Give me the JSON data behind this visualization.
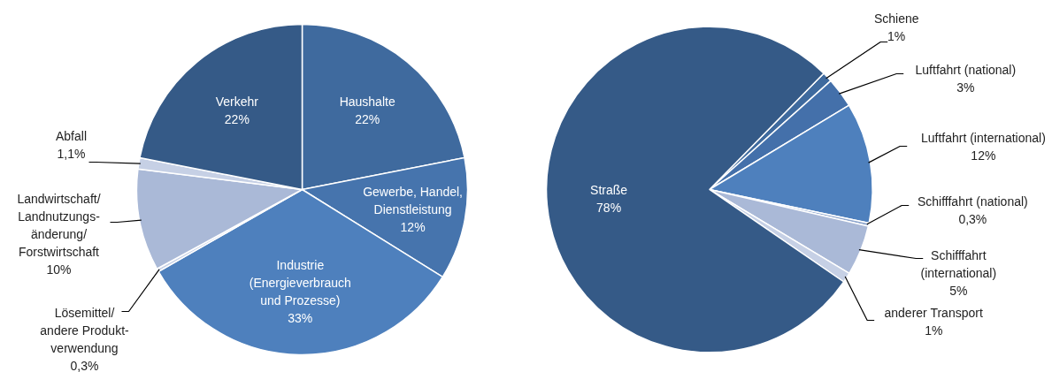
{
  "chart_data": [
    {
      "type": "pie",
      "categories": [
        "Haushalte",
        "Gewerbe, Handel,\nDienstleistung",
        "Industrie\n(Energieverbrauch\nund Prozesse)",
        "Lösemittel/\nandere Produkt-\nverwendung",
        "Landwirtschaft/\nLandnutzungs-\nänderung/\nForstwirtschaft",
        "Abfall",
        "Verkehr"
      ],
      "values": [
        22,
        12,
        33,
        0.3,
        10,
        1.1,
        22
      ],
      "value_labels": [
        "22%",
        "12%",
        "33%",
        "0,3%",
        "10%",
        "1,1%",
        "22%"
      ],
      "colors": [
        "#3f6a9e",
        "#4674ad",
        "#4e80bd",
        "#c8d2e6",
        "#aab9d7",
        "#c6d0e5",
        "#355a87"
      ]
    },
    {
      "type": "pie",
      "categories": [
        "Schiene",
        "Luftfahrt (national)",
        "Luftfahrt (international)",
        "Schifffahrt (national)",
        "Schifffahrt\n(international)",
        "anderer Transport",
        "Straße"
      ],
      "values": [
        1,
        3,
        12,
        0.3,
        5,
        1,
        78
      ],
      "value_labels": [
        "1%",
        "3%",
        "12%",
        "0,3%",
        "5%",
        "1%",
        "78%"
      ],
      "colors": [
        "#3f6a9e",
        "#4470aa",
        "#4e80bd",
        "#8ea6cd",
        "#aab9d7",
        "#c6d0e5",
        "#355a87"
      ]
    }
  ]
}
